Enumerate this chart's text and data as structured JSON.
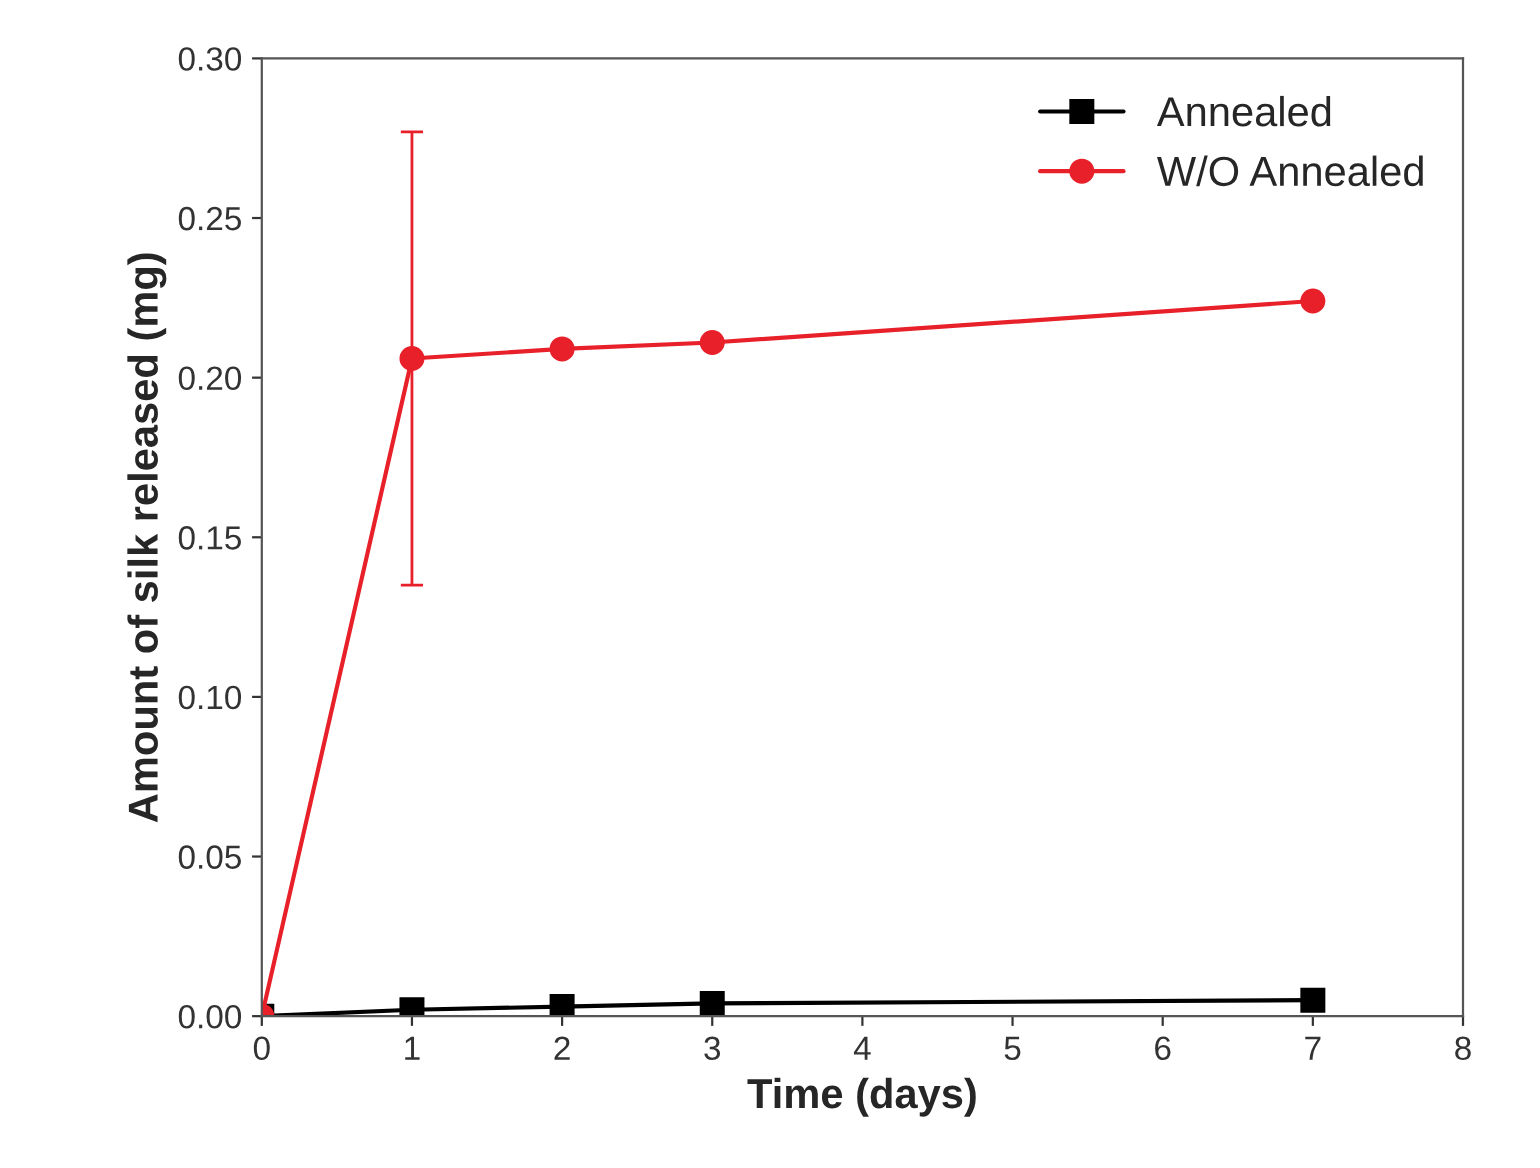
{
  "chart_data": {
    "type": "line",
    "xlabel": "Time (days)",
    "ylabel": "Amount of silk released (mg)",
    "x": [
      0,
      1,
      2,
      3,
      7
    ],
    "series": [
      {
        "name": "Annealed",
        "color": "#000000",
        "marker": "square",
        "values": [
          0.0,
          0.002,
          0.003,
          0.004,
          0.005
        ]
      },
      {
        "name": "W/O Annealed",
        "color": "#e8202a",
        "marker": "circle",
        "values": [
          0.0,
          0.206,
          0.209,
          0.211,
          0.224
        ],
        "errors": [
          null,
          0.071,
          null,
          null,
          null
        ]
      }
    ],
    "xlim": [
      0,
      8
    ],
    "xticks": [
      0,
      1,
      2,
      3,
      4,
      5,
      6,
      7,
      8
    ],
    "ylim": [
      0,
      0.3
    ],
    "yticks": [
      {
        "value": 0,
        "label": "0.00"
      },
      {
        "value": 0.05,
        "label": "0.05"
      },
      {
        "value": 0.1,
        "label": "0.10"
      },
      {
        "value": 0.15,
        "label": "0.15"
      },
      {
        "value": 0.2,
        "label": "0.20"
      },
      {
        "value": 0.25,
        "label": "0.25"
      },
      {
        "value": 0.3,
        "label": "0.30"
      }
    ],
    "grid": false,
    "legend": "top right",
    "line_style": "solid"
  }
}
